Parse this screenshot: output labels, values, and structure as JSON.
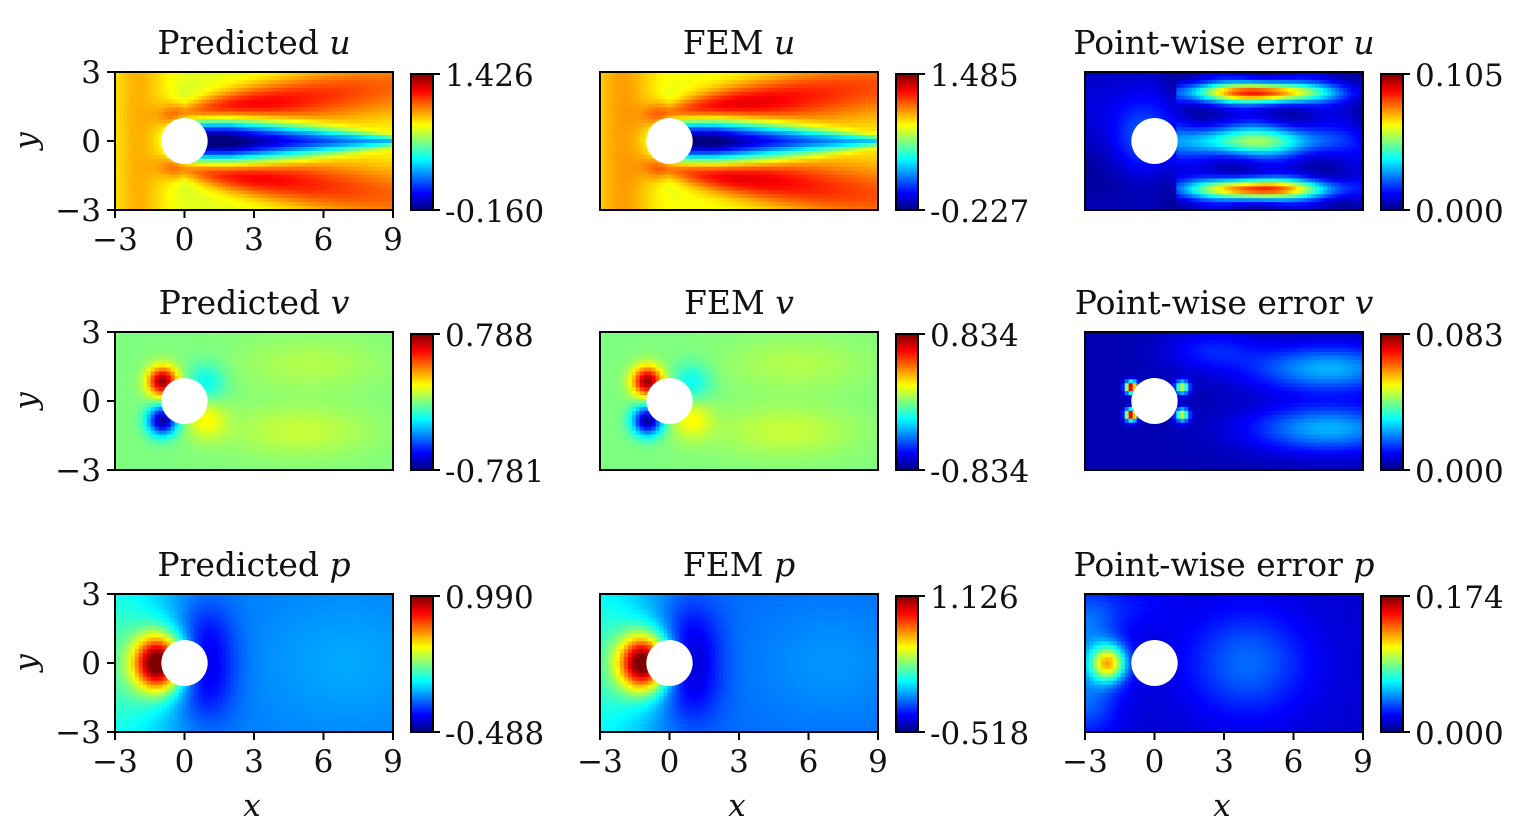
{
  "figure": {
    "colormap": [
      "#00007f",
      "#0000ff",
      "#007fff",
      "#00ffff",
      "#7fff7f",
      "#ffff00",
      "#ff7f00",
      "#ff0000",
      "#7f0000"
    ],
    "obstacle_color": "#ffffff"
  },
  "chart_data": [
    {
      "type": "heatmap",
      "title": "Predicted u",
      "title_prefix": "Predicted ",
      "title_var": "u",
      "field": "u_pred",
      "xlim": [
        -3,
        9
      ],
      "ylim": [
        -3,
        3
      ],
      "xticks": [
        "−3",
        "0",
        "3",
        "6",
        "9"
      ],
      "yticks": [
        "3",
        "0",
        "−3"
      ],
      "xlabel": "",
      "ylabel": "y",
      "colorbar": {
        "max": "1.426",
        "min": "-0.160"
      },
      "has_cylinder": true
    },
    {
      "type": "heatmap",
      "title": "FEM u",
      "title_prefix": "FEM ",
      "title_var": "u",
      "field": "u_fem",
      "xlim": [
        -3,
        9
      ],
      "ylim": [
        -3,
        3
      ],
      "xticks": [],
      "yticks": [],
      "xlabel": "",
      "ylabel": "",
      "colorbar": {
        "max": "1.485",
        "min": "-0.227"
      },
      "has_cylinder": true
    },
    {
      "type": "heatmap",
      "title": "Point-wise error u",
      "title_prefix": "Point-wise error ",
      "title_var": "u",
      "field": "u_err",
      "xlim": [
        -3,
        9
      ],
      "ylim": [
        -3,
        3
      ],
      "xticks": [],
      "yticks": [],
      "xlabel": "",
      "ylabel": "",
      "colorbar": {
        "max": "0.105",
        "min": "0.000"
      },
      "has_cylinder": true
    },
    {
      "type": "heatmap",
      "title": "Predicted v",
      "title_prefix": "Predicted ",
      "title_var": "v",
      "field": "v_pred",
      "xlim": [
        -3,
        9
      ],
      "ylim": [
        -3,
        3
      ],
      "xticks": [],
      "yticks": [
        "3",
        "0",
        "−3"
      ],
      "xlabel": "",
      "ylabel": "y",
      "colorbar": {
        "max": "0.788",
        "min": "-0.781"
      },
      "has_cylinder": true
    },
    {
      "type": "heatmap",
      "title": "FEM v",
      "title_prefix": "FEM ",
      "title_var": "v",
      "field": "v_fem",
      "xlim": [
        -3,
        9
      ],
      "ylim": [
        -3,
        3
      ],
      "xticks": [],
      "yticks": [],
      "xlabel": "",
      "ylabel": "",
      "colorbar": {
        "max": "0.834",
        "min": "-0.834"
      },
      "has_cylinder": true
    },
    {
      "type": "heatmap",
      "title": "Point-wise error v",
      "title_prefix": "Point-wise error ",
      "title_var": "v",
      "field": "v_err",
      "xlim": [
        -3,
        9
      ],
      "ylim": [
        -3,
        3
      ],
      "xticks": [],
      "yticks": [],
      "xlabel": "",
      "ylabel": "",
      "colorbar": {
        "max": "0.083",
        "min": "0.000"
      },
      "has_cylinder": true
    },
    {
      "type": "heatmap",
      "title": "Predicted p",
      "title_prefix": "Predicted ",
      "title_var": "p",
      "field": "p_pred",
      "xlim": [
        -3,
        9
      ],
      "ylim": [
        -3,
        3
      ],
      "xticks": [
        "−3",
        "0",
        "3",
        "6",
        "9"
      ],
      "yticks": [
        "3",
        "0",
        "−3"
      ],
      "xlabel": "x",
      "ylabel": "y",
      "colorbar": {
        "max": "0.990",
        "min": "-0.488"
      },
      "has_cylinder": true
    },
    {
      "type": "heatmap",
      "title": "FEM p",
      "title_prefix": "FEM ",
      "title_var": "p",
      "field": "p_fem",
      "xlim": [
        -3,
        9
      ],
      "ylim": [
        -3,
        3
      ],
      "xticks": [
        "−3",
        "0",
        "3",
        "6",
        "9"
      ],
      "yticks": [],
      "xlabel": "x",
      "ylabel": "",
      "colorbar": {
        "max": "1.126",
        "min": "-0.518"
      },
      "has_cylinder": true
    },
    {
      "type": "heatmap",
      "title": "Point-wise error p",
      "title_prefix": "Point-wise error ",
      "title_var": "p",
      "field": "p_err",
      "xlim": [
        -3,
        9
      ],
      "ylim": [
        -3,
        3
      ],
      "xticks": [
        "−3",
        "0",
        "3",
        "6",
        "9"
      ],
      "yticks": [],
      "xlabel": "x",
      "ylabel": "",
      "colorbar": {
        "max": "0.174",
        "min": "0.000"
      },
      "has_cylinder": true
    }
  ]
}
